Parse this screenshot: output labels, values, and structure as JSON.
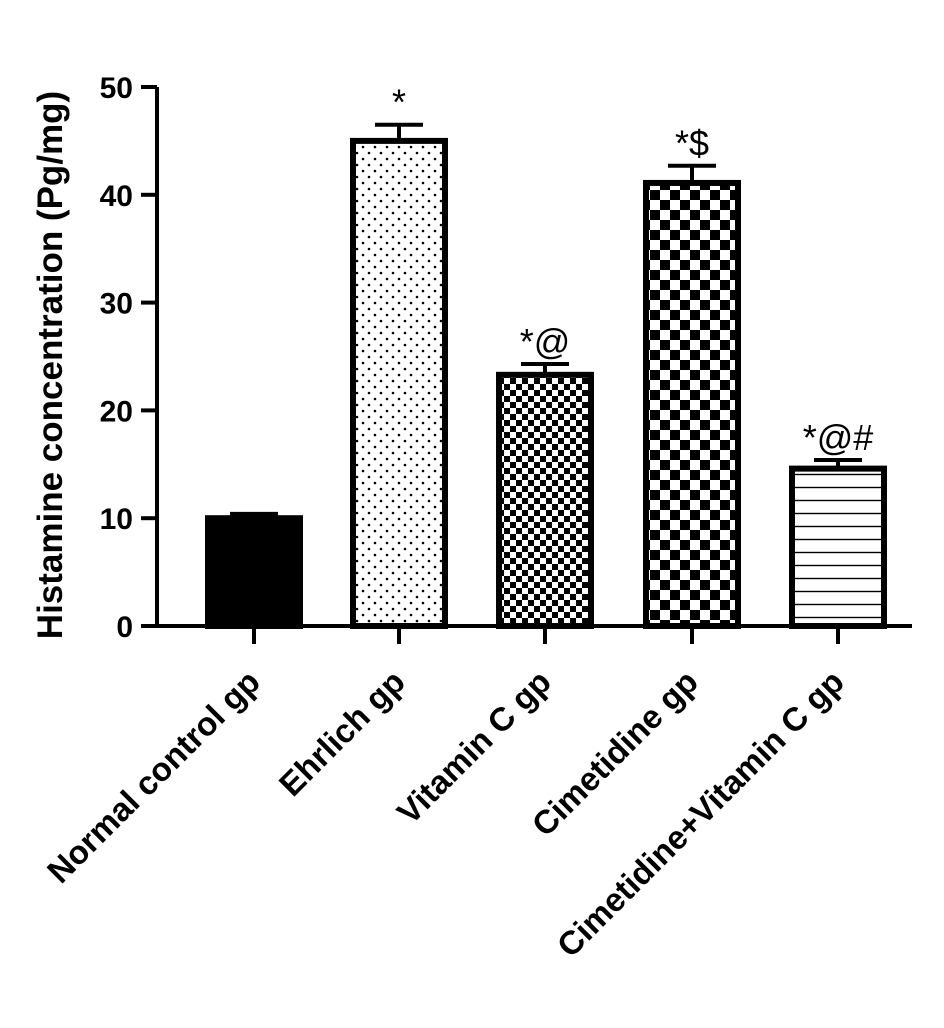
{
  "chart_data": {
    "type": "bar",
    "title": "",
    "xlabel": "",
    "ylabel": "Histamine concentration (Pg/mg)",
    "ylim": [
      0,
      50
    ],
    "yticks": [
      0,
      10,
      20,
      30,
      40,
      50
    ],
    "grid": false,
    "categories": [
      "Normal control gp",
      "Ehrlich gp",
      "Vitamin C gp",
      "Cimetidine gp",
      "Cimetidine+Vitamin C gp"
    ],
    "values": [
      10.0,
      45.0,
      23.3,
      41.1,
      14.6
    ],
    "errors": [
      0.4,
      1.5,
      1.0,
      1.6,
      0.8
    ],
    "annotations": [
      "",
      "*",
      "*@",
      "*$",
      "*@#"
    ],
    "fills": [
      "solid",
      "dots",
      "fine-checker",
      "coarse-checker",
      "horizontal-lines"
    ],
    "colors": {
      "bar_stroke": "#000000",
      "bar_fill": "#ffffff",
      "solid_fill": "#000000"
    }
  }
}
